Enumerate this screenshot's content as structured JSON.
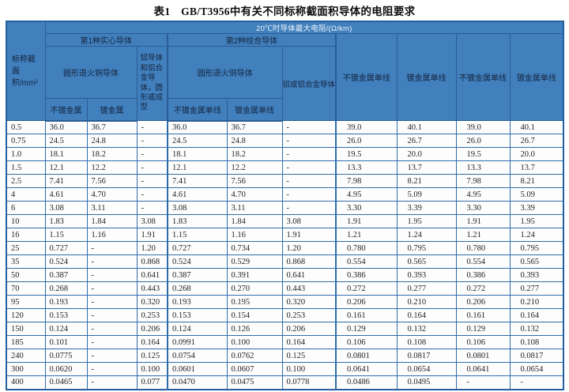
{
  "title": "表1　GB/T3956中有关不同标称截面积导体的电阻要求",
  "colors": {
    "header_bg": "#4180bd",
    "border_blue": "#2f6cab",
    "outer_border": "#24609f",
    "header_text_dark": "#15243e",
    "header_text_light": "#eef3fa",
    "data_text": "#1e1e1e",
    "page_bg": "#ffffff"
  },
  "chart_data": {
    "type": "table",
    "title": "表1　GB/T3956中有关不同标称截面积导体的电阻要求",
    "header": {
      "resistance_title": "20℃时导体最大电阻/(Ω/km)",
      "size_label": "标称截\n面积/mm²",
      "group1": "第1种实心导体",
      "group2": "第2种绞合导体",
      "g1_copper": "圆形退火铜导体",
      "g1_aluminum": "铝导体和铝合金导体，圆形或成型",
      "g2_copper": "圆形退火铜导体",
      "g2_aluminum": "铝或铝合金导体",
      "g1_sub_plain": "不镀金属",
      "g1_sub_plated": "镀金属",
      "g2_sub_plain": "不镀金属单线",
      "g2_sub_plated": "镀金属单线",
      "col8": "不镀金属单线",
      "col9": "镀金属单线",
      "col10": "不镀金属单线",
      "col11": "镀金属单线"
    },
    "columns": [
      "标称截面积/mm²",
      "第1种实心导体-圆形退火铜导体-不镀金属",
      "第1种实心导体-圆形退火铜导体-镀金属",
      "第1种实心导体-铝导体和铝合金导体，圆形或成型",
      "第2种绞合导体-圆形退火铜导体-不镀金属单线",
      "第2种绞合导体-圆形退火铜导体-镀金属单线",
      "第2种绞合导体-铝或铝合金导体",
      "不镀金属单线",
      "镀金属单线",
      "不镀金属单线",
      "镀金属单线"
    ],
    "rows": [
      [
        "0.5",
        "36.0",
        "36.7",
        "-",
        "36.0",
        "36.7",
        "-",
        "39.0",
        "40.1",
        "39.0",
        "40.1"
      ],
      [
        "0.75",
        "24.5",
        "24.8",
        "-",
        "24.5",
        "24.8",
        "-",
        "26.0",
        "26.7",
        "26.0",
        "26.7"
      ],
      [
        "1.0",
        "18.1",
        "18.2",
        "-",
        "18.1",
        "18.2",
        "-",
        "19.5",
        "20.0",
        "19.5",
        "20.0"
      ],
      [
        "1.5",
        "12.1",
        "12.2",
        "-",
        "12.1",
        "12.2",
        "-",
        "13.3",
        "13.7",
        "13.3",
        "13.7"
      ],
      [
        "2.5",
        "7.41",
        "7.56",
        "-",
        "7.41",
        "7.56",
        "-",
        "7.98",
        "8.21",
        "7.98",
        "8.21"
      ],
      [
        "4",
        "4.61",
        "4.70",
        "-",
        "4.61",
        "4.70",
        "-",
        "4.95",
        "5.09",
        "4.95",
        "5.09"
      ],
      [
        "6",
        "3.08",
        "3.11",
        "-",
        "3.08",
        "3.11",
        "-",
        "3.30",
        "3.39",
        "3.30",
        "3.39"
      ],
      [
        "10",
        "1.83",
        "1.84",
        "3.08",
        "1.83",
        "1.84",
        "3.08",
        "1.91",
        "1.95",
        "1.91",
        "1.95"
      ],
      [
        "16",
        "1.15",
        "1.16",
        "1.91",
        "1.15",
        "1.16",
        "1.91",
        "1.21",
        "1.24",
        "1.21",
        "1.24"
      ],
      [
        "25",
        "0.727",
        "-",
        "1.20",
        "0.727",
        "0.734",
        "1.20",
        "0.780",
        "0.795",
        "0.780",
        "0.795"
      ],
      [
        "35",
        "0.524",
        "-",
        "0.868",
        "0.524",
        "0.529",
        "0.868",
        "0.554",
        "0.565",
        "0.554",
        "0.565"
      ],
      [
        "50",
        "0.387",
        "-",
        "0.641",
        "0.387",
        "0.391",
        "0.641",
        "0.386",
        "0.393",
        "0.386",
        "0.393"
      ],
      [
        "70",
        "0.268",
        "-",
        "0.443",
        "0.268",
        "0.270",
        "0.443",
        "0.272",
        "0.277",
        "0.272",
        "0.277"
      ],
      [
        "95",
        "0.193",
        "-",
        "0.320",
        "0.193",
        "0.195",
        "0.320",
        "0.206",
        "0.210",
        "0.206",
        "0.210"
      ],
      [
        "120",
        "0.153",
        "-",
        "0.253",
        "0.153",
        "0.154",
        "0.253",
        "0.161",
        "0.164",
        "0.161",
        "0.164"
      ],
      [
        "150",
        "0.124",
        "-",
        "0.206",
        "0.124",
        "0.126",
        "0.206",
        "0.129",
        "0.132",
        "0.129",
        "0.132"
      ],
      [
        "185",
        "0.101",
        "-",
        "0.164",
        "0.0991",
        "0.100",
        "0.164",
        "0.106",
        "0.108",
        "0.106",
        "0.108"
      ],
      [
        "240",
        "0.0775",
        "-",
        "0.125",
        "0.0754",
        "0.0762",
        "0.125",
        "0.0801",
        "0.0817",
        "0.0801",
        "0.0817"
      ],
      [
        "300",
        "0.0620",
        "-",
        "0.100",
        "0.0601",
        "0.0607",
        "0.100",
        "0.0641",
        "0.0654",
        "0.0641",
        "0.0654"
      ],
      [
        "400",
        "0.0465",
        "-",
        "0.077",
        "0.0470",
        "0.0475",
        "0.0778",
        "0.0486",
        "0.0495",
        "-",
        "-"
      ]
    ]
  }
}
